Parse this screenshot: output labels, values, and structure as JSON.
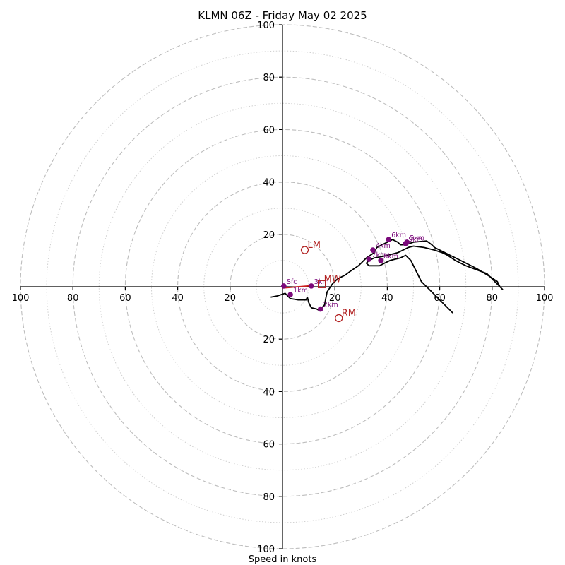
{
  "chart_data": {
    "type": "scatter",
    "title": "KLMN 06Z - Friday May 02 2025",
    "xlabel": "Speed in knots",
    "ylabel": "",
    "xlim": [
      -100,
      100
    ],
    "ylim": [
      -100,
      100
    ],
    "ring_major": [
      20,
      40,
      60,
      80,
      100
    ],
    "ring_minor": [
      10,
      30,
      50,
      70,
      90
    ],
    "tick_values": [
      100,
      80,
      60,
      40,
      20
    ],
    "x_tick_labels": [
      "100",
      "80",
      "60",
      "40",
      "20",
      "20",
      "40",
      "60",
      "80",
      "100"
    ],
    "y_tick_labels": [
      "100",
      "80",
      "60",
      "40",
      "20",
      "20",
      "40",
      "60",
      "80",
      "100"
    ],
    "hodograph_trace": [
      [
        -4.5,
        -4
      ],
      [
        -2,
        -3.5
      ],
      [
        1,
        -2.5
      ],
      [
        3,
        -4.5
      ],
      [
        6,
        -5
      ],
      [
        9,
        -5
      ],
      [
        9.5,
        -4
      ],
      [
        10,
        -6
      ],
      [
        11,
        -8
      ],
      [
        13,
        -8.5
      ],
      [
        14,
        -9
      ],
      [
        15,
        -8
      ],
      [
        16,
        -7
      ],
      [
        17,
        -2
      ],
      [
        19,
        1
      ],
      [
        21,
        3
      ],
      [
        24,
        4.5
      ],
      [
        26,
        6
      ],
      [
        29,
        8
      ],
      [
        32,
        11
      ],
      [
        35,
        13
      ],
      [
        36,
        15
      ],
      [
        38,
        16
      ],
      [
        40,
        17
      ],
      [
        42,
        18
      ],
      [
        44,
        17
      ],
      [
        45,
        16
      ],
      [
        47,
        16
      ],
      [
        50,
        17
      ],
      [
        55,
        17.5
      ],
      [
        57,
        16
      ],
      [
        58,
        15
      ],
      [
        60,
        14
      ],
      [
        62,
        13
      ],
      [
        64,
        12
      ],
      [
        66,
        11
      ],
      [
        70,
        9
      ],
      [
        74,
        7
      ],
      [
        79,
        4
      ],
      [
        82,
        2
      ],
      [
        83,
        0
      ],
      [
        84,
        -1
      ],
      [
        83,
        0
      ],
      [
        82,
        1
      ],
      [
        78,
        5
      ],
      [
        70,
        8
      ],
      [
        66,
        10
      ],
      [
        63,
        12
      ],
      [
        61,
        13
      ],
      [
        58,
        14
      ],
      [
        54,
        15
      ],
      [
        50,
        15.5
      ],
      [
        48,
        15
      ],
      [
        46,
        14
      ],
      [
        44,
        13
      ],
      [
        42,
        12.5
      ],
      [
        40,
        12
      ],
      [
        38,
        11.5
      ],
      [
        35,
        11
      ],
      [
        33,
        10
      ],
      [
        32,
        9
      ],
      [
        33,
        8
      ],
      [
        35,
        8
      ],
      [
        37,
        8
      ],
      [
        39,
        9
      ],
      [
        41,
        10
      ],
      [
        43,
        10.5
      ],
      [
        45,
        11
      ],
      [
        47,
        12
      ],
      [
        49,
        10
      ],
      [
        50,
        8
      ],
      [
        51,
        6
      ],
      [
        52,
        4
      ],
      [
        53,
        2
      ],
      [
        54,
        1
      ],
      [
        55,
        0
      ],
      [
        56,
        -1
      ],
      [
        58,
        -3
      ],
      [
        60,
        -5
      ],
      [
        62,
        -7
      ],
      [
        64,
        -9
      ],
      [
        65,
        -10
      ]
    ],
    "shear_vector": [
      [
        0,
        -0.5
      ],
      [
        12,
        0.5
      ]
    ],
    "height_markers": [
      {
        "label": "Sfc",
        "x": 0.5,
        "y": 0.3
      },
      {
        "label": "1km",
        "x": 3,
        "y": -3
      },
      {
        "label": "2km",
        "x": 14.5,
        "y": -8.5
      },
      {
        "label": "3km",
        "x": 11,
        "y": 0.3
      },
      {
        "label": "4km",
        "x": 34.5,
        "y": 14
      },
      {
        "label": "5km",
        "x": 47.5,
        "y": 17
      },
      {
        "label": "6km",
        "x": 40.5,
        "y": 18
      },
      {
        "label": "7km",
        "x": 33,
        "y": 10.5
      },
      {
        "label": "8km",
        "x": 37.5,
        "y": 10
      },
      {
        "label": "9km",
        "x": 47,
        "y": 16.5
      }
    ],
    "storm_motions": [
      {
        "label": "LM",
        "x": 8.5,
        "y": 14
      },
      {
        "label": "RM",
        "x": 21.5,
        "y": -12
      }
    ],
    "mean_wind": {
      "label": "MW",
      "x": 15,
      "y": 1
    }
  },
  "colors": {
    "trace": "#000000",
    "markers": "#7b0a7b",
    "motion": "#b22222",
    "grid": "#bdbdbd"
  }
}
